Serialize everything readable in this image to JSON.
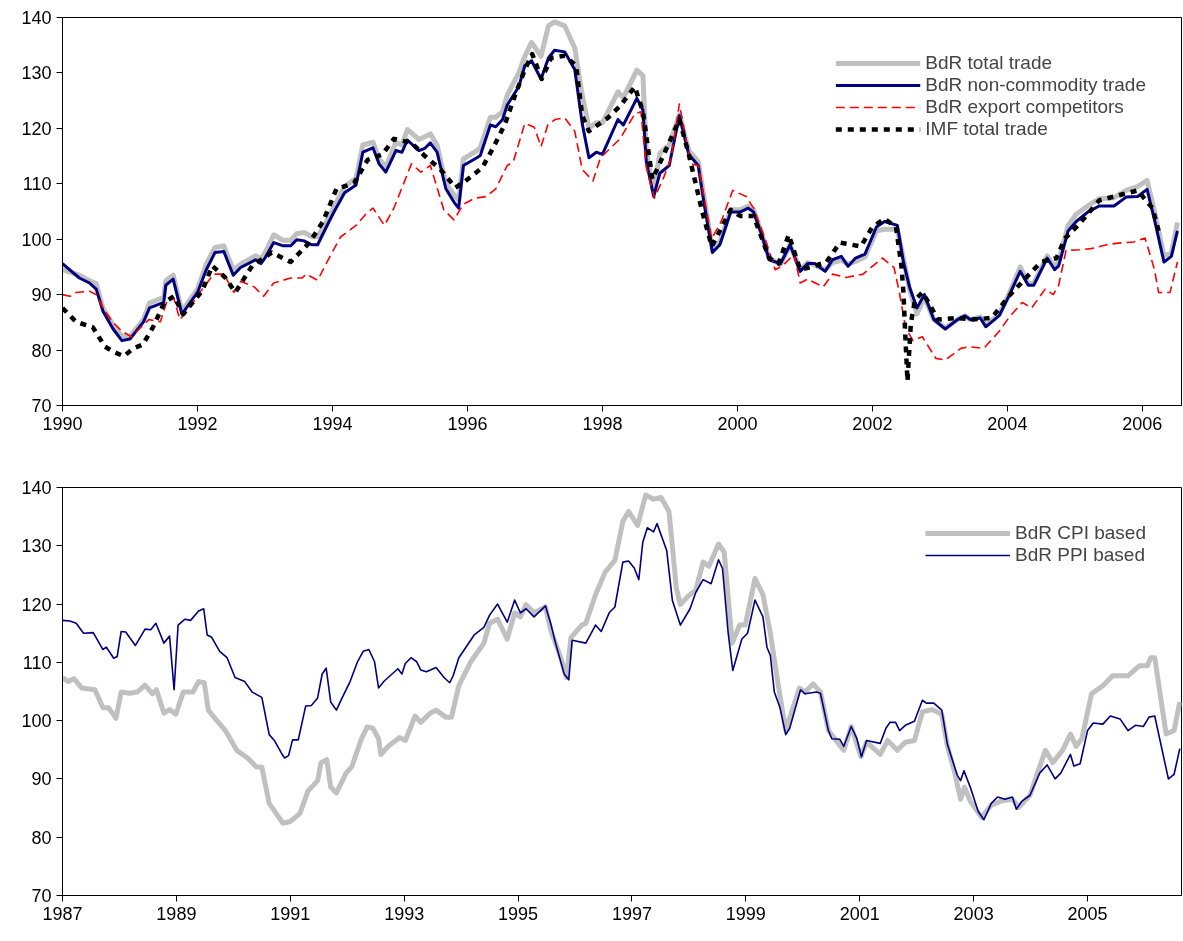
{
  "chart_data": [
    {
      "type": "line",
      "xlim": [
        1990,
        2006.58
      ],
      "ylim": [
        70,
        140
      ],
      "xticks": [
        1990,
        1992,
        1994,
        1996,
        1998,
        2000,
        2002,
        2004,
        2006
      ],
      "yticks": [
        70,
        80,
        90,
        100,
        110,
        120,
        130,
        140
      ],
      "grid": false,
      "legend": "top right",
      "series": [
        {
          "name": "BdR total trade",
          "color": "#c0c0c0",
          "line_style": "solid",
          "x": [
            1990.0,
            1990.25,
            1990.4,
            1990.5,
            1990.6,
            1990.75,
            1990.88,
            1991.0,
            1991.2,
            1991.29,
            1991.5,
            1991.53,
            1991.64,
            1991.77,
            1992.0,
            1992.13,
            1992.26,
            1992.39,
            1992.53,
            1992.64,
            1992.86,
            1992.94,
            1993.0,
            1993.13,
            1993.27,
            1993.38,
            1993.47,
            1993.58,
            1993.69,
            1993.78,
            1993.95,
            1994.03,
            1994.18,
            1994.35,
            1994.45,
            1994.6,
            1994.69,
            1994.79,
            1994.94,
            1995.03,
            1995.11,
            1995.28,
            1995.37,
            1995.45,
            1995.55,
            1995.68,
            1995.8,
            1995.87,
            1995.94,
            1996.14,
            1996.19,
            1996.34,
            1996.42,
            1996.52,
            1996.59,
            1996.76,
            1996.85,
            1996.95,
            1997.09,
            1997.2,
            1997.29,
            1997.44,
            1997.59,
            1997.7,
            1997.8,
            1997.91,
            1998.0,
            1998.23,
            1998.31,
            1998.51,
            1998.6,
            1998.65,
            1998.76,
            1998.85,
            1998.99,
            1999.14,
            1999.28,
            1999.42,
            1999.5,
            1999.63,
            1999.74,
            1999.9,
            2000.04,
            2000.16,
            2000.24,
            2000.36,
            2000.47,
            2000.64,
            2000.78,
            2000.93,
            2001.04,
            2001.15,
            2001.3,
            2001.41,
            2001.54,
            2001.64,
            2001.75,
            2001.89,
            2002.06,
            2002.18,
            2002.37,
            2002.46,
            2002.55,
            2002.66,
            2002.77,
            2002.91,
            2003.08,
            2003.26,
            2003.37,
            2003.45,
            2003.6,
            2003.68,
            2003.88,
            2004.02,
            2004.19,
            2004.31,
            2004.39,
            2004.59,
            2004.7,
            2004.76,
            2004.9,
            2005.02,
            2005.19,
            2005.36,
            2005.58,
            2005.76,
            2005.93,
            2006.07,
            2006.18,
            2006.32,
            2006.43,
            2006.52
          ],
          "values": [
            94.5,
            93.5,
            92.5,
            92,
            87.5,
            84.5,
            82.5,
            82.5,
            85.5,
            88.5,
            89.5,
            92.5,
            93.5,
            87,
            91,
            95.5,
            98.5,
            98.8,
            94.5,
            95.5,
            97,
            96.5,
            97.5,
            100.8,
            99.8,
            99.8,
            101,
            101.2,
            100.5,
            100.5,
            104,
            106,
            109.5,
            111,
            117,
            117.5,
            114.5,
            113,
            117.5,
            117,
            119.8,
            118,
            118.5,
            119,
            117,
            110,
            108,
            107,
            114.5,
            116,
            116.5,
            122,
            122,
            123,
            126,
            130,
            133,
            135.5,
            133,
            138.5,
            139.2,
            138.5,
            134.5,
            126,
            120,
            121,
            121,
            126.6,
            125.5,
            130.5,
            129.5,
            116,
            108.5,
            115.5,
            117,
            122.5,
            116,
            114,
            108,
            98,
            99.5,
            105.3,
            105.3,
            106,
            105.3,
            101,
            96.5,
            95.5,
            99,
            94.5,
            95.8,
            95.3,
            94.5,
            95.8,
            96.2,
            95.5,
            96,
            96.8,
            101.5,
            101.8,
            101.8,
            96.5,
            91,
            86.5,
            89.5,
            85.5,
            84,
            85.5,
            86.2,
            85.5,
            86,
            84.5,
            86.5,
            90,
            95,
            92,
            92,
            97,
            95,
            96,
            102.5,
            104.5,
            106,
            107.3,
            107.5,
            108.8,
            109.5,
            110.6,
            105,
            97,
            97.5,
            103
          ]
        },
        {
          "name": "BdR non-commodity trade",
          "color": "#000080",
          "line_style": "solid",
          "x": [
            1990.0,
            1990.25,
            1990.4,
            1990.5,
            1990.6,
            1990.75,
            1990.88,
            1991.0,
            1991.2,
            1991.29,
            1991.5,
            1991.53,
            1991.64,
            1991.77,
            1992.0,
            1992.13,
            1992.26,
            1992.39,
            1992.53,
            1992.64,
            1992.86,
            1992.94,
            1993.0,
            1993.13,
            1993.27,
            1993.38,
            1993.47,
            1993.58,
            1993.69,
            1993.78,
            1993.95,
            1994.03,
            1994.18,
            1994.35,
            1994.45,
            1994.6,
            1994.69,
            1994.79,
            1994.94,
            1995.03,
            1995.11,
            1995.28,
            1995.37,
            1995.45,
            1995.55,
            1995.68,
            1995.8,
            1995.87,
            1995.94,
            1996.14,
            1996.19,
            1996.34,
            1996.42,
            1996.52,
            1996.59,
            1996.76,
            1996.85,
            1996.95,
            1997.09,
            1997.2,
            1997.29,
            1997.44,
            1997.59,
            1997.7,
            1997.8,
            1997.91,
            1998.0,
            1998.23,
            1998.31,
            1998.51,
            1998.6,
            1998.65,
            1998.76,
            1998.85,
            1998.99,
            1999.14,
            1999.28,
            1999.42,
            1999.5,
            1999.63,
            1999.74,
            1999.9,
            2000.04,
            2000.16,
            2000.24,
            2000.36,
            2000.47,
            2000.64,
            2000.78,
            2000.93,
            2001.04,
            2001.15,
            2001.3,
            2001.41,
            2001.54,
            2001.64,
            2001.75,
            2001.89,
            2002.06,
            2002.18,
            2002.37,
            2002.46,
            2002.55,
            2002.66,
            2002.77,
            2002.91,
            2003.08,
            2003.26,
            2003.37,
            2003.45,
            2003.6,
            2003.68,
            2003.88,
            2004.02,
            2004.19,
            2004.31,
            2004.39,
            2004.59,
            2004.7,
            2004.76,
            2004.9,
            2005.02,
            2005.19,
            2005.36,
            2005.58,
            2005.76,
            2005.93,
            2006.07,
            2006.18,
            2006.32,
            2006.43,
            2006.52
          ],
          "values": [
            95.6,
            93,
            92.1,
            91,
            87,
            83.8,
            81.7,
            82,
            85.1,
            87.6,
            88.6,
            91.7,
            92.8,
            86.5,
            90.4,
            94.5,
            97.6,
            97.8,
            93.5,
            94.9,
            96.3,
            95.6,
            96.6,
            99.4,
            98.8,
            98.8,
            99.9,
            99.7,
            99,
            99,
            103.2,
            105.1,
            108.4,
            109.8,
            115.7,
            116.5,
            113.6,
            112.1,
            116,
            115.7,
            117.9,
            116,
            116.4,
            117.4,
            115.7,
            109.1,
            106.7,
            105.6,
            113.3,
            114.7,
            115.1,
            120.6,
            120.3,
            121.6,
            124.2,
            127.5,
            131.3,
            132.2,
            128.9,
            132.7,
            134.1,
            133.8,
            130.6,
            120.9,
            114.7,
            115.7,
            115.3,
            121.6,
            120.6,
            125.4,
            123.3,
            114,
            107.7,
            111.9,
            113.3,
            122.3,
            115.3,
            113.3,
            107,
            97.6,
            99,
            104.9,
            104.9,
            105.6,
            104.9,
            100.8,
            96.3,
            95.6,
            99,
            94.2,
            95.6,
            95.6,
            94.2,
            96.3,
            96.9,
            95.1,
            96.6,
            97.3,
            102.2,
            103.2,
            102.5,
            95.9,
            91.4,
            87.6,
            90,
            85.5,
            83.8,
            85.5,
            86.2,
            85.5,
            85.8,
            84.2,
            86.2,
            89.7,
            94.2,
            91.7,
            91.7,
            96.6,
            94.5,
            95.2,
            101.5,
            103.2,
            104.9,
            106,
            106,
            107.6,
            107.7,
            109,
            103.5,
            95.9,
            96.9,
            101.5
          ]
        },
        {
          "name": "BdR export competitors",
          "color": "#ff0000",
          "line_style": "dashed",
          "x": [
            1990.0,
            1990.11,
            1990.2,
            1990.4,
            1990.5,
            1990.6,
            1990.74,
            1990.88,
            1991.02,
            1991.28,
            1991.45,
            1991.56,
            1991.65,
            1991.74,
            1991.88,
            1992.07,
            1992.24,
            1992.39,
            1992.54,
            1992.64,
            1992.84,
            1992.98,
            1993.13,
            1993.38,
            1993.55,
            1993.61,
            1993.78,
            1993.95,
            1994.12,
            1994.35,
            1994.52,
            1994.6,
            1994.77,
            1994.91,
            1995.17,
            1995.31,
            1995.45,
            1995.65,
            1995.8,
            1995.94,
            1996.11,
            1996.28,
            1996.42,
            1996.59,
            1996.68,
            1996.85,
            1996.99,
            1997.09,
            1997.19,
            1997.3,
            1997.44,
            1997.59,
            1997.7,
            1997.86,
            1997.97,
            1998.26,
            1998.48,
            1998.57,
            1998.65,
            1998.77,
            1998.91,
            1999.02,
            1999.14,
            1999.31,
            1999.42,
            1999.62,
            1999.76,
            1999.93,
            2000.13,
            2000.24,
            2000.41,
            2000.56,
            2000.67,
            2000.84,
            2000.93,
            2001.04,
            2001.27,
            2001.41,
            2001.61,
            2001.86,
            2002.15,
            2002.32,
            2002.4,
            2002.49,
            2002.6,
            2002.74,
            2002.94,
            2003.08,
            2003.31,
            2003.43,
            2003.65,
            2003.88,
            2004.02,
            2004.22,
            2004.36,
            2004.56,
            2004.68,
            2004.76,
            2004.87,
            2005.07,
            2005.24,
            2005.47,
            2005.64,
            2005.87,
            2006.04,
            2006.18,
            2006.24,
            2006.41,
            2006.52
          ],
          "values": [
            90,
            89.7,
            90.4,
            90.6,
            90,
            87.6,
            85.1,
            83.4,
            82.4,
            85.5,
            85.1,
            89.3,
            89.3,
            85.5,
            87.6,
            91,
            93.7,
            93.7,
            90.4,
            92.4,
            91.4,
            89.7,
            92.1,
            93,
            93,
            93.7,
            92.6,
            96.6,
            100.4,
            102.5,
            104.9,
            105.6,
            102.5,
            105.6,
            113.6,
            112.1,
            113.3,
            105.3,
            103.5,
            106.3,
            107.4,
            107.7,
            109.1,
            113.3,
            114,
            120.9,
            120.2,
            116.7,
            120.6,
            121.6,
            121.9,
            119.5,
            112.6,
            110.5,
            114.7,
            118.1,
            122.6,
            123,
            112.9,
            107.4,
            111.2,
            114.7,
            124.4,
            113.6,
            113.3,
            100.1,
            103.2,
            108.8,
            107.7,
            105.6,
            100.1,
            94.5,
            95.2,
            97.3,
            92.1,
            92.8,
            91.4,
            93.7,
            93.1,
            93.7,
            96.6,
            94.9,
            90.4,
            84.1,
            81.7,
            82.4,
            78.5,
            78.2,
            80.3,
            80.6,
            80.3,
            83.4,
            85.8,
            88.6,
            87.6,
            91,
            90,
            91.7,
            98,
            98.1,
            98.3,
            99,
            99.3,
            99.5,
            100.2,
            94.5,
            90.4,
            90.4,
            95.9
          ]
        },
        {
          "name": "IMF total trade",
          "color": "#000000",
          "line_style": "dotted",
          "x": [
            1990.0,
            1990.2,
            1990.45,
            1990.63,
            1990.77,
            1990.91,
            1991.05,
            1991.19,
            1991.34,
            1991.51,
            1991.65,
            1991.79,
            1992.07,
            1992.22,
            1992.41,
            1992.56,
            1992.81,
            1993.1,
            1993.38,
            1993.66,
            1993.86,
            1994.06,
            1994.32,
            1994.52,
            1994.74,
            1994.91,
            1995.17,
            1995.37,
            1995.6,
            1995.82,
            1995.97,
            1996.22,
            1996.39,
            1996.56,
            1996.7,
            1996.85,
            1996.96,
            1997.1,
            1997.24,
            1997.44,
            1997.61,
            1997.7,
            1997.8,
            1998.08,
            1998.26,
            1998.48,
            1998.6,
            1998.74,
            1998.91,
            1999.14,
            1999.28,
            1999.48,
            1999.62,
            1999.9,
            2000.04,
            2000.24,
            2000.47,
            2000.61,
            2000.76,
            2000.93,
            2001.15,
            2001.32,
            2001.52,
            2001.83,
            2002.0,
            2002.18,
            2002.35,
            2002.43,
            2002.46,
            2002.49,
            2002.52,
            2002.57,
            2002.63,
            2002.74,
            2002.86,
            2002.97,
            2003.26,
            2003.48,
            2003.77,
            2004.02,
            2004.28,
            2004.5,
            2004.73,
            2004.85,
            2005.07,
            2005.36,
            2005.58,
            2005.93,
            2006.15,
            2006.24
          ],
          "values": [
            87.6,
            85.1,
            84.1,
            80.6,
            79.6,
            78.9,
            80.3,
            81,
            84.1,
            88.6,
            89.7,
            86.5,
            90.7,
            95.2,
            93.1,
            90.4,
            95.2,
            97.6,
            95.9,
            99.4,
            103.2,
            109.1,
            110.1,
            114.3,
            115.3,
            118.1,
            117.4,
            115,
            112.6,
            109.3,
            110.5,
            112.9,
            116.7,
            120.9,
            125.8,
            130.6,
            133.4,
            128.9,
            132.7,
            133.1,
            131.3,
            122.3,
            119.5,
            121.9,
            124,
            127.5,
            123,
            110.8,
            115.3,
            121.6,
            115.3,
            104.9,
            98.7,
            105.3,
            104.2,
            104.2,
            96.6,
            95.6,
            100.8,
            94.5,
            95.2,
            95.9,
            99.4,
            98.7,
            102.2,
            103.7,
            102.2,
            95.2,
            90.4,
            82,
            74.4,
            84.8,
            89,
            90.4,
            88,
            85.5,
            85.8,
            85.5,
            85.8,
            89.7,
            93.1,
            95.9,
            96.6,
            100.1,
            102.8,
            107,
            107.7,
            108.8,
            105.6,
            101.5
          ]
        }
      ]
    },
    {
      "type": "line",
      "xlim": [
        1987,
        2006.65
      ],
      "ylim": [
        70,
        140
      ],
      "xticks": [
        1987,
        1989,
        1991,
        1993,
        1995,
        1997,
        1999,
        2001,
        2003,
        2005
      ],
      "yticks": [
        70,
        80,
        90,
        100,
        110,
        120,
        130,
        140
      ],
      "grid": false,
      "legend": "top right",
      "series": [
        {
          "name": "BdR CPI based",
          "color": "#c0c0c0",
          "line_style": "solid",
          "x": [
            1987.0,
            1987.1,
            1987.2,
            1987.34,
            1987.57,
            1987.71,
            1987.81,
            1987.94,
            1988.03,
            1988.18,
            1988.31,
            1988.45,
            1988.58,
            1988.65,
            1988.78,
            1988.88,
            1988.99,
            1989.12,
            1989.29,
            1989.39,
            1989.49,
            1989.56,
            1989.66,
            1989.86,
            1990.06,
            1990.26,
            1990.4,
            1990.5,
            1990.63,
            1990.73,
            1990.87,
            1991.0,
            1991.17,
            1991.31,
            1991.48,
            1991.54,
            1991.64,
            1991.71,
            1991.81,
            1991.98,
            1992.08,
            1992.25,
            1992.35,
            1992.45,
            1992.55,
            1992.59,
            1992.72,
            1992.92,
            1993.02,
            1993.12,
            1993.19,
            1993.29,
            1993.46,
            1993.56,
            1993.73,
            1993.83,
            1993.96,
            1994.17,
            1994.4,
            1994.5,
            1994.64,
            1994.81,
            1994.94,
            1995.04,
            1995.14,
            1995.28,
            1995.48,
            1995.58,
            1995.75,
            1995.85,
            1995.93,
            1996.12,
            1996.19,
            1996.36,
            1996.53,
            1996.7,
            1996.84,
            1996.94,
            1997.1,
            1997.24,
            1997.38,
            1997.51,
            1997.65,
            1997.78,
            1997.85,
            1997.98,
            1998.12,
            1998.25,
            1998.35,
            1998.52,
            1998.62,
            1998.76,
            1998.89,
            1998.99,
            1999.16,
            1999.3,
            1999.43,
            1999.57,
            1999.7,
            1999.94,
            2000.04,
            2000.18,
            2000.31,
            2000.45,
            2000.72,
            2000.85,
            2001.02,
            2001.12,
            2001.36,
            2001.49,
            2001.66,
            2001.8,
            2001.96,
            2002.1,
            2002.27,
            2002.44,
            2002.54,
            2002.67,
            2002.77,
            2002.84,
            2002.94,
            2003.14,
            2003.31,
            2003.48,
            2003.68,
            2003.79,
            2003.99,
            2004.12,
            2004.26,
            2004.39,
            2004.56,
            2004.7,
            2004.8,
            2004.9,
            2005.07,
            2005.27,
            2005.44,
            2005.71,
            2005.91,
            2006.05,
            2006.11,
            2006.18,
            2006.38,
            2006.52,
            2006.62
          ],
          "values": [
            107.4,
            106.7,
            107.2,
            105.6,
            105.3,
            102.2,
            102.2,
            100.4,
            104.9,
            104.7,
            104.9,
            106.1,
            104.6,
            105.3,
            101.3,
            101.9,
            101.1,
            104.9,
            104.9,
            106.7,
            106.5,
            101.8,
            100.6,
            98.3,
            94.9,
            93.5,
            92.1,
            92,
            85.8,
            84.4,
            82.4,
            82.7,
            84.1,
            87.9,
            89.7,
            92.8,
            93.3,
            88.6,
            87.6,
            91,
            92.1,
            96.9,
            98.9,
            98.7,
            96.9,
            94.2,
            95.6,
            97.1,
            96.6,
            99,
            100.8,
            99.7,
            101.3,
            101.8,
            100.6,
            100.6,
            106,
            110.1,
            113.3,
            116.7,
            117.4,
            114,
            118.5,
            117.8,
            119.9,
            118.5,
            119.5,
            115.3,
            110.8,
            107.4,
            114.3,
            116.4,
            116.7,
            121.6,
            125.5,
            127.5,
            134.2,
            135.9,
            133.5,
            138.7,
            138,
            138.3,
            135.9,
            122.7,
            119.9,
            121.3,
            122.4,
            127.2,
            126.5,
            130.3,
            128.9,
            113.3,
            116.4,
            116.4,
            124.4,
            121.6,
            115,
            106,
            98.3,
            105.6,
            104.9,
            106.3,
            104.9,
            98.3,
            94.9,
            99,
            93.8,
            96.3,
            94.2,
            96.6,
            94.9,
            96.3,
            96.6,
            101.5,
            101.9,
            101.1,
            95.6,
            91,
            86.5,
            88.6,
            86.2,
            83.4,
            85.5,
            86.2,
            86.5,
            85.1,
            87.2,
            91,
            94.9,
            92.8,
            94.9,
            97.7,
            95.6,
            96.9,
            104.6,
            106,
            107.7,
            107.7,
            109.4,
            109.4,
            110.8,
            110.8,
            97.7,
            98.3,
            103.2
          ]
        },
        {
          "name": "BdR PPI based",
          "color": "#000080",
          "line_style": "solid",
          "x": [
            1987.0,
            1987.13,
            1987.24,
            1987.37,
            1987.54,
            1987.71,
            1987.77,
            1987.9,
            1987.96,
            1988.03,
            1988.11,
            1988.28,
            1988.45,
            1988.55,
            1988.64,
            1988.78,
            1988.88,
            1988.96,
            1989.03,
            1989.15,
            1989.25,
            1989.39,
            1989.48,
            1989.54,
            1989.62,
            1989.76,
            1989.89,
            1990.03,
            1990.2,
            1990.33,
            1990.5,
            1990.63,
            1990.72,
            1990.84,
            1990.9,
            1990.97,
            1991.04,
            1991.14,
            1991.27,
            1991.37,
            1991.48,
            1991.56,
            1991.63,
            1991.71,
            1991.81,
            1991.91,
            1992.05,
            1992.18,
            1992.28,
            1992.38,
            1992.48,
            1992.55,
            1992.65,
            1992.89,
            1992.96,
            1993.02,
            1993.12,
            1993.22,
            1993.29,
            1993.39,
            1993.56,
            1993.7,
            1993.8,
            1993.86,
            1993.96,
            1994.23,
            1994.4,
            1994.5,
            1994.64,
            1994.81,
            1994.94,
            1995.04,
            1995.14,
            1995.28,
            1995.48,
            1995.58,
            1995.65,
            1995.81,
            1995.89,
            1995.95,
            1996.19,
            1996.36,
            1996.46,
            1996.6,
            1996.7,
            1996.84,
            1996.94,
            1997.04,
            1997.12,
            1997.19,
            1997.27,
            1997.38,
            1997.44,
            1997.61,
            1997.71,
            1997.85,
            1998.02,
            1998.12,
            1998.25,
            1998.39,
            1998.52,
            1998.59,
            1998.69,
            1998.77,
            1998.93,
            1999.03,
            1999.16,
            1999.3,
            1999.37,
            1999.43,
            1999.5,
            1999.6,
            1999.7,
            1999.77,
            1999.96,
            2000.04,
            2000.24,
            2000.31,
            2000.45,
            2000.51,
            2000.65,
            2000.72,
            2000.85,
            2000.95,
            2001.03,
            2001.12,
            2001.36,
            2001.46,
            2001.53,
            2001.63,
            2001.7,
            2001.8,
            2001.96,
            2002.1,
            2002.17,
            2002.3,
            2002.44,
            2002.54,
            2002.71,
            2002.77,
            2002.83,
            2002.94,
            2003.08,
            2003.18,
            2003.31,
            2003.42,
            2003.55,
            2003.68,
            2003.75,
            2003.85,
            2003.99,
            2004.16,
            2004.29,
            2004.43,
            2004.53,
            2004.7,
            2004.76,
            2004.87,
            2005.0,
            2005.1,
            2005.27,
            2005.4,
            2005.57,
            2005.71,
            2005.84,
            2005.98,
            2006.08,
            2006.18,
            2006.42,
            2006.52,
            2006.62
          ],
          "values": [
            117.2,
            117.1,
            116.7,
            115,
            115.1,
            112.2,
            112.6,
            110.7,
            111,
            115.3,
            115.2,
            112.9,
            115.7,
            115.6,
            116.7,
            113.3,
            114.5,
            105.3,
            116.4,
            117.4,
            117.2,
            118.8,
            119.2,
            114.7,
            114.3,
            111.9,
            110.8,
            107.4,
            106.7,
            104.9,
            104,
            97.6,
            96.6,
            94.5,
            93.6,
            94,
            96.7,
            96.7,
            102.5,
            102.6,
            103.9,
            108,
            109,
            103.2,
            101.8,
            103.9,
            106.7,
            110.1,
            111.9,
            112.2,
            110.1,
            105.6,
            106.8,
            108.9,
            108,
            109.8,
            110.8,
            110.1,
            108.7,
            108.4,
            109.1,
            107.4,
            106.5,
            107.7,
            110.8,
            114.7,
            116,
            118.1,
            120,
            116.9,
            120.7,
            118.5,
            119.2,
            117.8,
            119.7,
            116.4,
            113.6,
            108,
            107,
            113.8,
            113.3,
            116.4,
            115.3,
            118.5,
            119.5,
            127.2,
            127.4,
            126.2,
            124.2,
            130.6,
            133.1,
            132.4,
            133.8,
            129.2,
            120.6,
            116.4,
            119.2,
            122,
            124.2,
            123.5,
            127.6,
            126.1,
            115,
            108.6,
            114,
            115,
            120.7,
            117.8,
            112.6,
            111.2,
            104.9,
            102.2,
            97.6,
            98.7,
            105.3,
            104.6,
            104.9,
            104.7,
            98.3,
            96.9,
            96.8,
            95.6,
            99,
            96.9,
            93.8,
            96.6,
            96.1,
            98.7,
            99.7,
            99.7,
            98.3,
            99.2,
            99.9,
            103.5,
            103,
            103,
            101.8,
            95.9,
            90.7,
            89.7,
            91.4,
            88.6,
            84.4,
            83,
            85.8,
            86.9,
            86.5,
            86.9,
            84.8,
            86.2,
            87.2,
            91,
            92.4,
            90,
            91,
            94.2,
            92.2,
            92.6,
            98.3,
            99.6,
            99.4,
            100.8,
            100.3,
            98.3,
            99.2,
            99,
            100.6,
            100.8,
            90,
            90.8,
            95.2
          ]
        }
      ]
    }
  ]
}
